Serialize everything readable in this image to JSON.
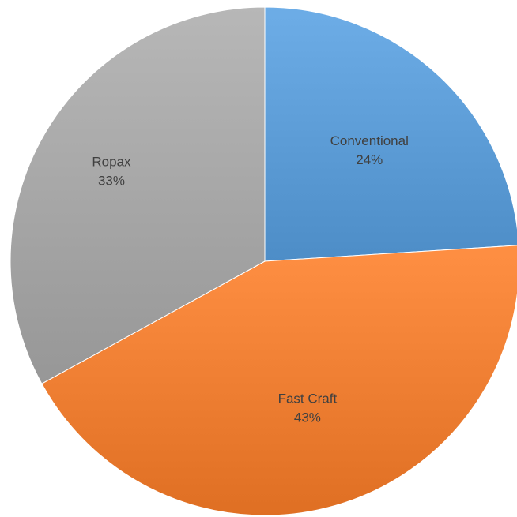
{
  "chart_data": {
    "type": "pie",
    "title": "",
    "slices": [
      {
        "label": "Conventional",
        "value": 24,
        "value_label": "24%",
        "color": "#5B9BD5"
      },
      {
        "label": "Fast Craft",
        "value": 43,
        "value_label": "43%",
        "color": "#ED7D31"
      },
      {
        "label": "Ropax",
        "value": 33,
        "value_label": "33%",
        "color": "#A5A5A5"
      }
    ],
    "legend": "none",
    "start_angle": "12 o'clock",
    "direction": "clockwise"
  }
}
